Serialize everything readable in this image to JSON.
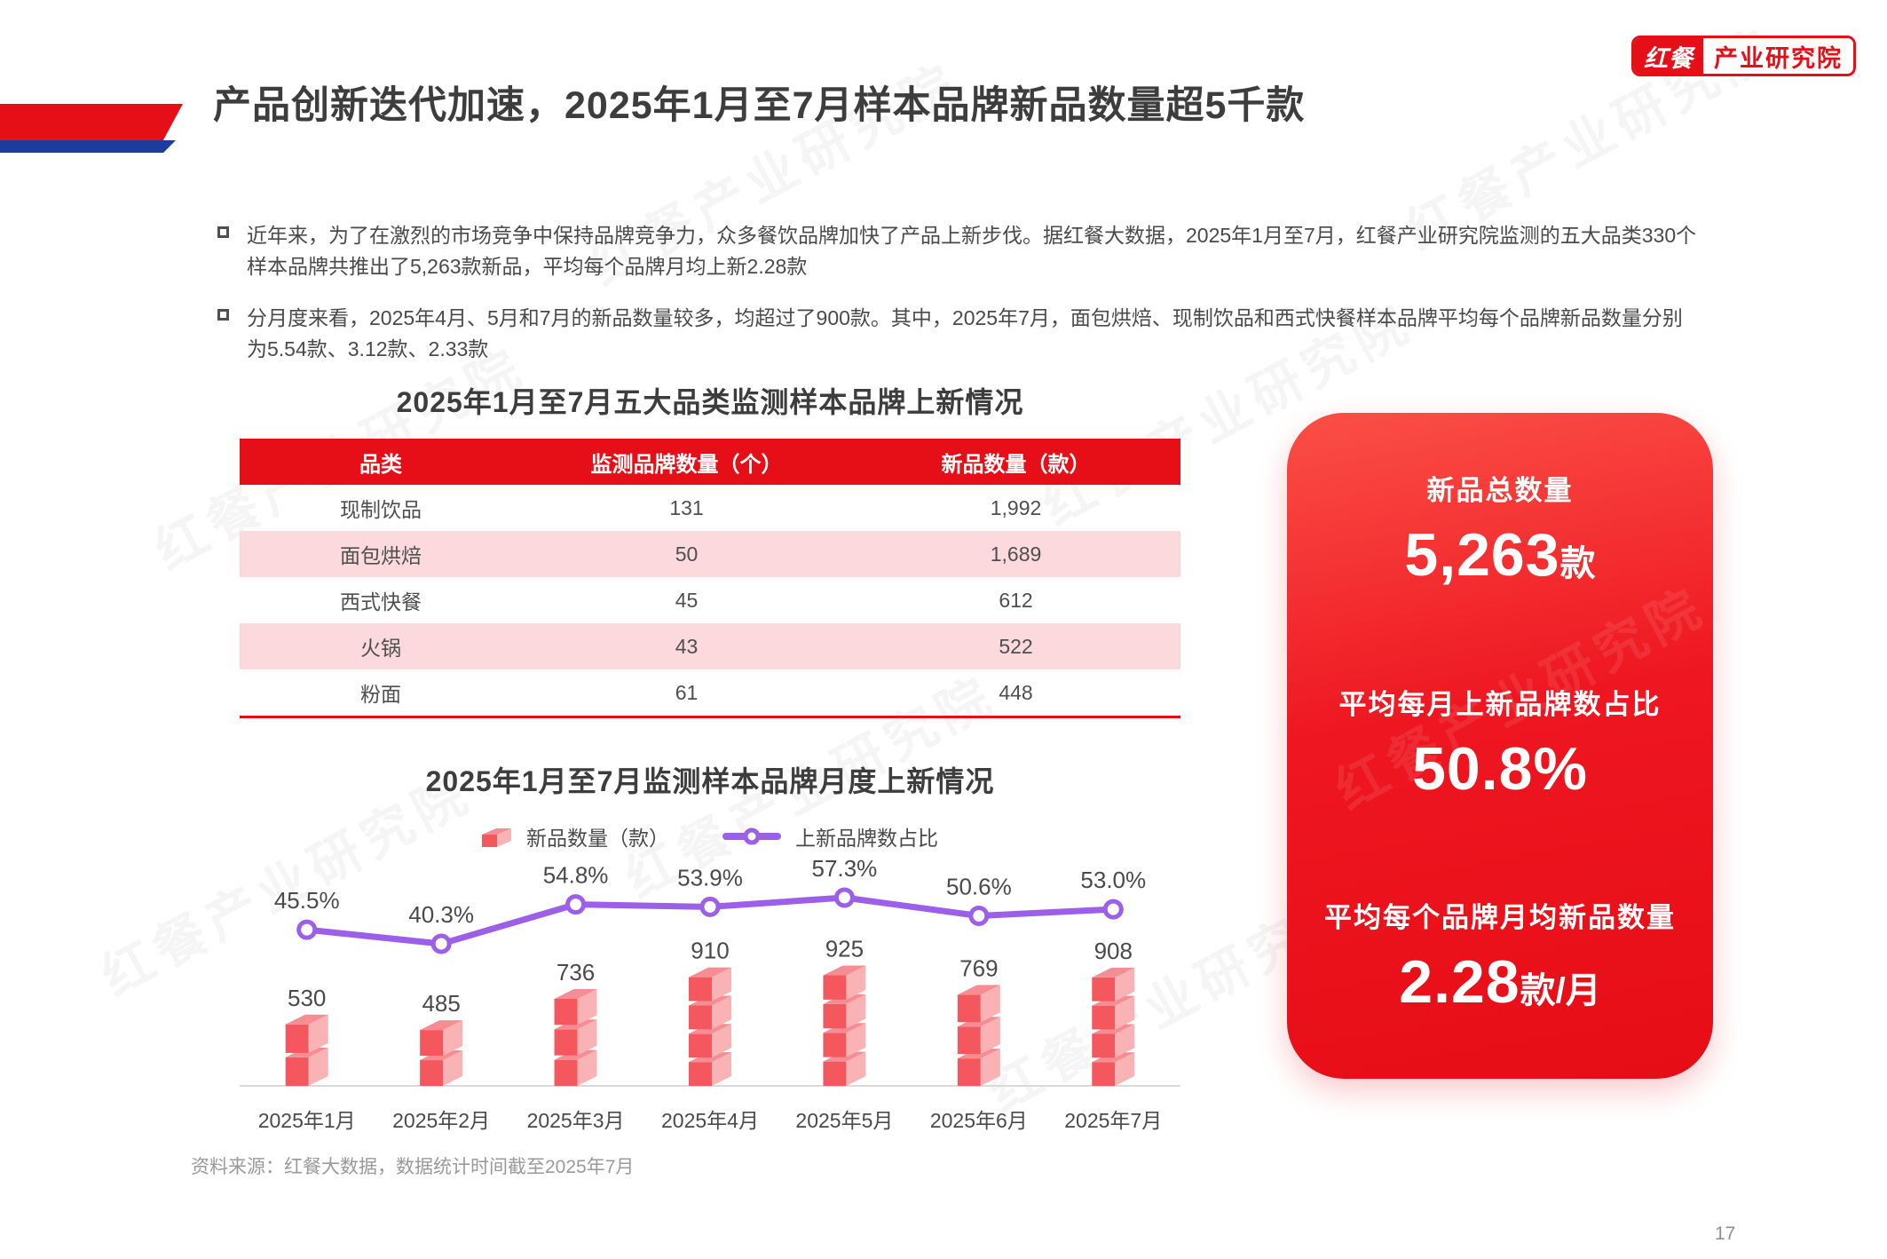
{
  "page": {
    "number": "17"
  },
  "logo": {
    "brand": "红餐",
    "suffix": "产业研究院",
    "color": "#e60f18"
  },
  "header": {
    "title": "产品创新迭代加速，2025年1月至7月样本品牌新品数量超5千款"
  },
  "bullets": [
    "近年来，为了在激烈的市场竞争中保持品牌竞争力，众多餐饮品牌加快了产品上新步伐。据红餐大数据，2025年1月至7月，红餐产业研究院监测的五大品类330个样本品牌共推出了5,263款新品，平均每个品牌月均上新2.28款",
    "分月度来看，2025年4月、5月和7月的新品数量较多，均超过了900款。其中，2025年7月，面包烘焙、现制饮品和西式快餐样本品牌平均每个品牌新品数量分别为5.54款、3.12款、2.33款"
  ],
  "table": {
    "title": "2025年1月至7月五大品类监测样本品牌上新情况",
    "headers": [
      "品类",
      "监测品牌数量（个）",
      "新品数量（款）"
    ],
    "rows": [
      [
        "现制饮品",
        "131",
        "1,992"
      ],
      [
        "面包烘焙",
        "50",
        "1,689"
      ],
      [
        "西式快餐",
        "45",
        "612"
      ],
      [
        "火锅",
        "43",
        "522"
      ],
      [
        "粉面",
        "61",
        "448"
      ]
    ],
    "header_bg": "#e60f18",
    "stripe_bg": "#fbd9dc"
  },
  "chart_data": {
    "type": "bar",
    "title": "2025年1月至7月监测样本品牌月度上新情况",
    "categories": [
      "2025年1月",
      "2025年2月",
      "2025年3月",
      "2025年4月",
      "2025年5月",
      "2025年6月",
      "2025年7月"
    ],
    "series": [
      {
        "name": "新品数量（款）",
        "type": "bar",
        "values": [
          530,
          485,
          736,
          910,
          925,
          769,
          908
        ]
      },
      {
        "name": "上新品牌数占比",
        "type": "line",
        "unit": "%",
        "values": [
          45.5,
          40.3,
          54.8,
          53.9,
          57.3,
          50.6,
          53.0
        ]
      }
    ],
    "legend_position": "top",
    "grid": false,
    "colors": {
      "bar_front": "#f4575d",
      "bar_side": "#f9b3b5",
      "bar_top": "#f58d92",
      "line": "#9b5fe8"
    }
  },
  "stat_card": {
    "items": [
      {
        "label": "新品总数量",
        "value": "5,263",
        "unit": "款"
      },
      {
        "label": "平均每月上新品牌数占比",
        "value": "50.8%",
        "unit": ""
      },
      {
        "label": "平均每个品牌月均新品数量",
        "value": "2.28",
        "unit": "款/月"
      }
    ]
  },
  "footer": {
    "source": "资料来源：红餐大数据，数据统计时间截至2025年7月"
  },
  "watermark": {
    "text": "红餐产业研究院"
  }
}
